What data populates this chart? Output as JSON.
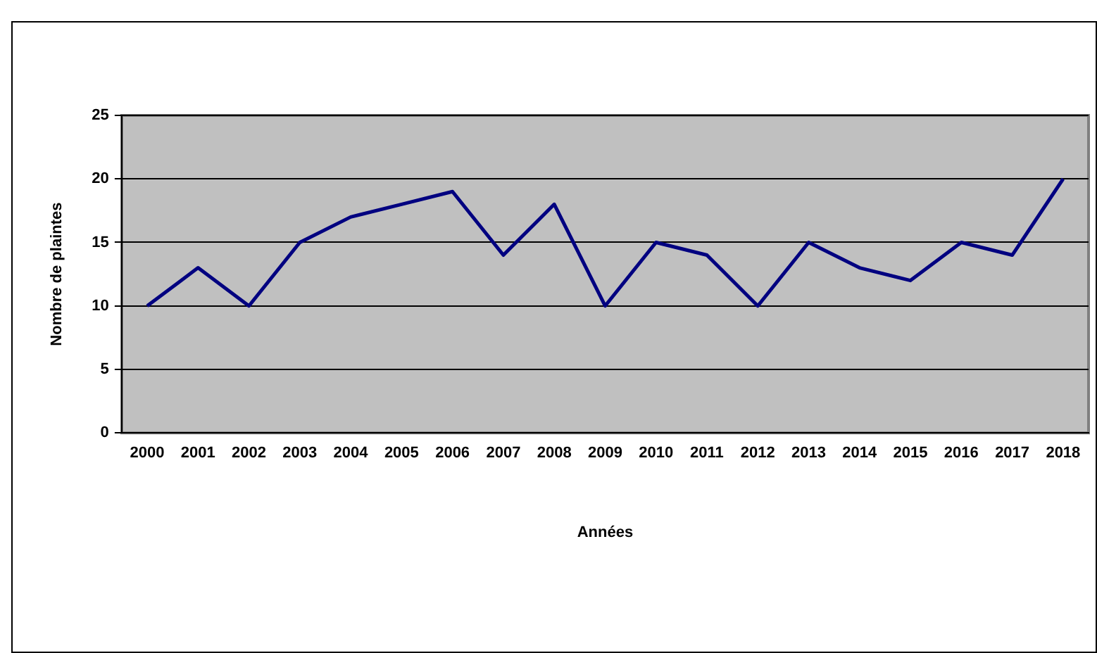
{
  "chart_data": {
    "type": "line",
    "xlabel": "Années",
    "ylabel": "Nombre de plaintes",
    "categories": [
      "2000",
      "2001",
      "2002",
      "2003",
      "2004",
      "2005",
      "2006",
      "2007",
      "2008",
      "2009",
      "2010",
      "2011",
      "2012",
      "2013",
      "2014",
      "2015",
      "2016",
      "2017",
      "2018"
    ],
    "series": [
      {
        "color": "#000080",
        "values": [
          10,
          13,
          10,
          15,
          17,
          18,
          19,
          14,
          18,
          10,
          15,
          14,
          10,
          15,
          13,
          12,
          15,
          14,
          20
        ]
      }
    ],
    "ylim": [
      0,
      25
    ],
    "yticks": [
      0,
      5,
      10,
      15,
      20,
      25
    ],
    "grid": "y",
    "legend": false,
    "marker": "none",
    "line_style": "solid"
  }
}
